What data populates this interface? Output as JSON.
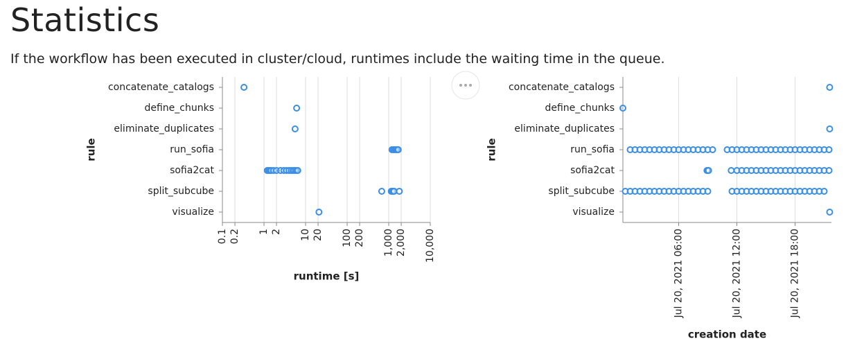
{
  "header": {
    "title": "Statistics",
    "description": "If the workflow has been executed in cluster/cloud, runtimes include the waiting time in the queue."
  },
  "chart_data": [
    {
      "type": "scatter",
      "x_label": "runtime [s]",
      "y_label": "rule",
      "log_x": true,
      "grid": true,
      "color": "#3a8ee6",
      "categories": [
        "concatenate_catalogs",
        "define_chunks",
        "eliminate_duplicates",
        "run_sofia",
        "sofia2cat",
        "split_subcube",
        "visualize"
      ],
      "xlim": [
        0.1,
        10000
      ],
      "xticks": [
        0.1,
        0.2,
        1,
        2,
        10,
        20,
        100,
        200,
        {
          "value": 1000,
          "label": "1,000"
        },
        {
          "value": 2000,
          "label": "2,000"
        },
        {
          "value": 10000,
          "label": "10,000"
        }
      ],
      "x": [
        0.33,
        6.1,
        5.6,
        1200,
        1300,
        1400,
        1500,
        1600,
        1700,
        1.2,
        1.3,
        1.4,
        1.5,
        1.7,
        2,
        2.5,
        3,
        3.5,
        4,
        4.5,
        5,
        5.5,
        6,
        6.5,
        680,
        1150,
        1200,
        1250,
        1300,
        1350,
        1800,
        21
      ],
      "y": [
        "concatenate_catalogs",
        "define_chunks",
        "eliminate_duplicates",
        "run_sofia",
        "run_sofia",
        "run_sofia",
        "run_sofia",
        "run_sofia",
        "run_sofia",
        "sofia2cat",
        "sofia2cat",
        "sofia2cat",
        "sofia2cat",
        "sofia2cat",
        "sofia2cat",
        "sofia2cat",
        "sofia2cat",
        "sofia2cat",
        "sofia2cat",
        "sofia2cat",
        "sofia2cat",
        "sofia2cat",
        "sofia2cat",
        "sofia2cat",
        "split_subcube",
        "split_subcube",
        "split_subcube",
        "split_subcube",
        "split_subcube",
        "split_subcube",
        "split_subcube",
        "visualize"
      ]
    },
    {
      "type": "scatter",
      "x_label": "creation date",
      "y_label": "rule",
      "log_x": false,
      "grid": true,
      "color": "#3a8ee6",
      "categories": [
        "concatenate_catalogs",
        "define_chunks",
        "eliminate_duplicates",
        "run_sofia",
        "sofia2cat",
        "split_subcube",
        "visualize"
      ],
      "xlim": [
        "2021-07-20T00:15",
        "2021-07-20T21:45"
      ],
      "xticks": [
        {
          "value": "2021-07-20T06:00",
          "label": "Jul 20, 2021 06:00"
        },
        {
          "value": "2021-07-20T12:00",
          "label": "Jul 20, 2021 12:00"
        },
        {
          "value": "2021-07-20T18:00",
          "label": "Jul 20, 2021 18:00"
        }
      ],
      "x": [
        "2021-07-20T21:34",
        "2021-07-20T00:15",
        "2021-07-20T21:34",
        "2021-07-20T01:00",
        "2021-07-20T01:30",
        "2021-07-20T02:00",
        "2021-07-20T02:30",
        "2021-07-20T03:00",
        "2021-07-20T03:30",
        "2021-07-20T04:00",
        "2021-07-20T04:30",
        "2021-07-20T05:00",
        "2021-07-20T05:30",
        "2021-07-20T06:00",
        "2021-07-20T06:30",
        "2021-07-20T07:00",
        "2021-07-20T07:30",
        "2021-07-20T08:00",
        "2021-07-20T08:30",
        "2021-07-20T09:00",
        "2021-07-20T09:30",
        "2021-07-20T11:00",
        "2021-07-20T11:30",
        "2021-07-20T12:00",
        "2021-07-20T12:30",
        "2021-07-20T13:00",
        "2021-07-20T13:30",
        "2021-07-20T14:00",
        "2021-07-20T14:30",
        "2021-07-20T15:00",
        "2021-07-20T15:30",
        "2021-07-20T16:00",
        "2021-07-20T16:30",
        "2021-07-20T17:00",
        "2021-07-20T17:30",
        "2021-07-20T18:00",
        "2021-07-20T18:30",
        "2021-07-20T19:00",
        "2021-07-20T19:30",
        "2021-07-20T20:00",
        "2021-07-20T20:30",
        "2021-07-20T21:00",
        "2021-07-20T21:30",
        "2021-07-20T08:55",
        "2021-07-20T09:00",
        "2021-07-20T09:05",
        "2021-07-20T11:25",
        "2021-07-20T12:00",
        "2021-07-20T12:30",
        "2021-07-20T13:00",
        "2021-07-20T13:30",
        "2021-07-20T14:00",
        "2021-07-20T14:30",
        "2021-07-20T15:00",
        "2021-07-20T15:30",
        "2021-07-20T16:00",
        "2021-07-20T16:30",
        "2021-07-20T17:00",
        "2021-07-20T17:30",
        "2021-07-20T18:00",
        "2021-07-20T18:30",
        "2021-07-20T19:00",
        "2021-07-20T19:30",
        "2021-07-20T20:00",
        "2021-07-20T20:30",
        "2021-07-20T21:00",
        "2021-07-20T21:30",
        "2021-07-20T00:30",
        "2021-07-20T01:00",
        "2021-07-20T01:30",
        "2021-07-20T02:00",
        "2021-07-20T02:30",
        "2021-07-20T03:00",
        "2021-07-20T03:30",
        "2021-07-20T04:00",
        "2021-07-20T04:30",
        "2021-07-20T05:00",
        "2021-07-20T05:30",
        "2021-07-20T06:00",
        "2021-07-20T06:30",
        "2021-07-20T07:00",
        "2021-07-20T07:30",
        "2021-07-20T08:00",
        "2021-07-20T08:30",
        "2021-07-20T09:00",
        "2021-07-20T11:30",
        "2021-07-20T12:00",
        "2021-07-20T12:30",
        "2021-07-20T13:00",
        "2021-07-20T13:30",
        "2021-07-20T14:00",
        "2021-07-20T14:30",
        "2021-07-20T15:00",
        "2021-07-20T15:30",
        "2021-07-20T16:00",
        "2021-07-20T16:30",
        "2021-07-20T17:00",
        "2021-07-20T17:30",
        "2021-07-20T18:00",
        "2021-07-20T18:30",
        "2021-07-20T19:00",
        "2021-07-20T19:30",
        "2021-07-20T20:00",
        "2021-07-20T20:30",
        "2021-07-20T21:00",
        "2021-07-20T21:34"
      ],
      "y": [
        "concatenate_catalogs",
        "define_chunks",
        "eliminate_duplicates",
        "run_sofia",
        "run_sofia",
        "run_sofia",
        "run_sofia",
        "run_sofia",
        "run_sofia",
        "run_sofia",
        "run_sofia",
        "run_sofia",
        "run_sofia",
        "run_sofia",
        "run_sofia",
        "run_sofia",
        "run_sofia",
        "run_sofia",
        "run_sofia",
        "run_sofia",
        "run_sofia",
        "run_sofia",
        "run_sofia",
        "run_sofia",
        "run_sofia",
        "run_sofia",
        "run_sofia",
        "run_sofia",
        "run_sofia",
        "run_sofia",
        "run_sofia",
        "run_sofia",
        "run_sofia",
        "run_sofia",
        "run_sofia",
        "run_sofia",
        "run_sofia",
        "run_sofia",
        "run_sofia",
        "run_sofia",
        "run_sofia",
        "run_sofia",
        "run_sofia",
        "sofia2cat",
        "sofia2cat",
        "sofia2cat",
        "sofia2cat",
        "sofia2cat",
        "sofia2cat",
        "sofia2cat",
        "sofia2cat",
        "sofia2cat",
        "sofia2cat",
        "sofia2cat",
        "sofia2cat",
        "sofia2cat",
        "sofia2cat",
        "sofia2cat",
        "sofia2cat",
        "sofia2cat",
        "sofia2cat",
        "sofia2cat",
        "sofia2cat",
        "sofia2cat",
        "sofia2cat",
        "sofia2cat",
        "sofia2cat",
        "split_subcube",
        "split_subcube",
        "split_subcube",
        "split_subcube",
        "split_subcube",
        "split_subcube",
        "split_subcube",
        "split_subcube",
        "split_subcube",
        "split_subcube",
        "split_subcube",
        "split_subcube",
        "split_subcube",
        "split_subcube",
        "split_subcube",
        "split_subcube",
        "split_subcube",
        "split_subcube",
        "split_subcube",
        "split_subcube",
        "split_subcube",
        "split_subcube",
        "split_subcube",
        "split_subcube",
        "split_subcube",
        "split_subcube",
        "split_subcube",
        "split_subcube",
        "split_subcube",
        "split_subcube",
        "split_subcube",
        "split_subcube",
        "split_subcube",
        "split_subcube",
        "split_subcube",
        "split_subcube",
        "split_subcube",
        "split_subcube",
        "visualize"
      ]
    }
  ]
}
